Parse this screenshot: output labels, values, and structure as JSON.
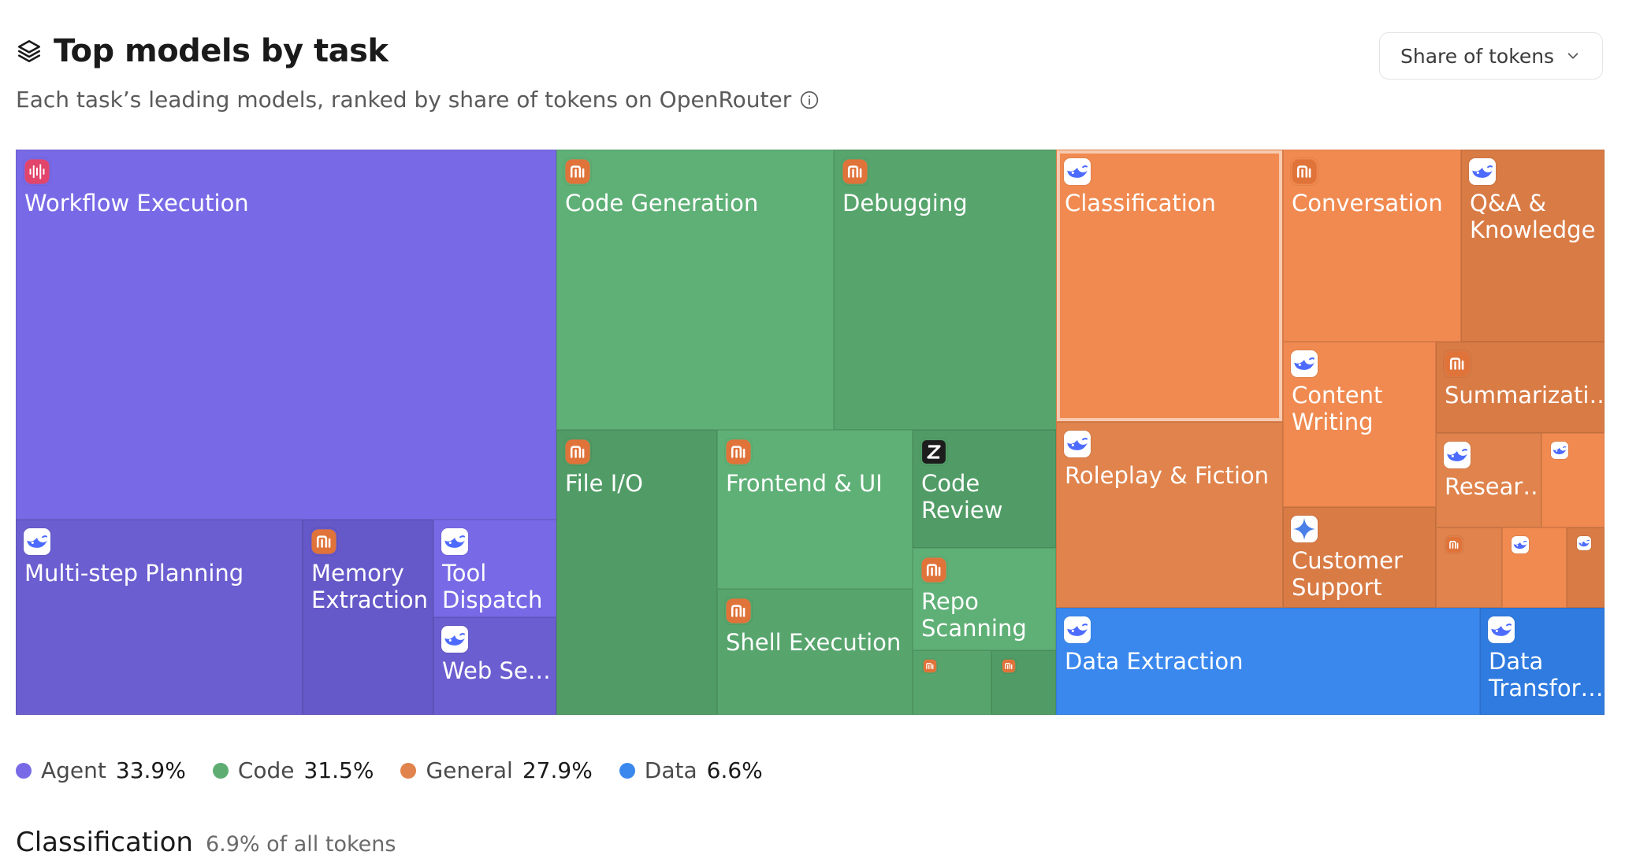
{
  "header": {
    "title": "Top models by task",
    "subtitle": "Each task’s leading models, ranked by share of tokens on OpenRouter",
    "metric_selected": "Share of tokens"
  },
  "colors": {
    "Agent": "#786ae6",
    "Code": "#5eae74",
    "General": "#e0834c",
    "Data": "#3a88ee"
  },
  "chart_data": {
    "type": "treemap",
    "title": "Top models by task",
    "groups": [
      {
        "name": "Agent",
        "share_label": "33.9%",
        "share": 33.9
      },
      {
        "name": "Code",
        "share_label": "31.5%",
        "share": 31.5
      },
      {
        "name": "General",
        "share_label": "27.9%",
        "share": 27.9
      },
      {
        "name": "Data",
        "share_label": "6.6%",
        "share": 6.6
      }
    ],
    "tasks": [
      {
        "label": "Workflow Execution",
        "group": "Agent",
        "icon": "waveform-logo-icon"
      },
      {
        "label": "Multi-step Planning",
        "group": "Agent",
        "icon": "whale-logo-icon"
      },
      {
        "label": "Memory Extraction",
        "group": "Agent",
        "icon": "mi-logo-icon"
      },
      {
        "label": "Tool Dispatch",
        "group": "Agent",
        "icon": "whale-logo-icon"
      },
      {
        "label": "Web Se…",
        "group": "Agent",
        "icon": "whale-logo-icon"
      },
      {
        "label": "Code Generation",
        "group": "Code",
        "icon": "mi-logo-icon"
      },
      {
        "label": "Debugging",
        "group": "Code",
        "icon": "mi-logo-icon"
      },
      {
        "label": "File I/O",
        "group": "Code",
        "icon": "mi-logo-icon"
      },
      {
        "label": "Frontend & UI",
        "group": "Code",
        "icon": "mi-logo-icon"
      },
      {
        "label": "Shell Execution",
        "group": "Code",
        "icon": "mi-logo-icon"
      },
      {
        "label": "Code Review",
        "group": "Code",
        "icon": "z-logo-icon"
      },
      {
        "label": "Repo Scanning",
        "group": "Code",
        "icon": "mi-logo-icon"
      },
      {
        "label": "",
        "group": "Code",
        "icon": "mi-logo-icon"
      },
      {
        "label": "",
        "group": "Code",
        "icon": "mi-logo-icon"
      },
      {
        "label": "Classification",
        "group": "General",
        "icon": "whale-logo-icon",
        "selected": true
      },
      {
        "label": "Conversation",
        "group": "General",
        "icon": "mi-logo-icon"
      },
      {
        "label": "Q&A & Knowledge",
        "group": "General",
        "icon": "whale-logo-icon"
      },
      {
        "label": "Roleplay & Fiction",
        "group": "General",
        "icon": "whale-logo-icon"
      },
      {
        "label": "Content Writing",
        "group": "General",
        "icon": "whale-logo-icon"
      },
      {
        "label": "Summarizati…",
        "group": "General",
        "icon": "mi-logo-icon"
      },
      {
        "label": "Resear…",
        "group": "General",
        "icon": "whale-logo-icon"
      },
      {
        "label": "",
        "group": "General",
        "icon": "whale-logo-icon"
      },
      {
        "label": "Customer Support",
        "group": "General",
        "icon": "sparkle-logo-icon"
      },
      {
        "label": "",
        "group": "General",
        "icon": "mi-logo-icon"
      },
      {
        "label": "",
        "group": "General",
        "icon": "whale-logo-icon"
      },
      {
        "label": "",
        "group": "General",
        "icon": "whale-logo-icon"
      },
      {
        "label": "",
        "group": "General",
        "icon": ""
      },
      {
        "label": "Data Extraction",
        "group": "Data",
        "icon": "whale-logo-icon"
      },
      {
        "label": "Data Transfor…",
        "group": "Data",
        "icon": "whale-logo-icon"
      }
    ]
  },
  "detail": {
    "title": "Classification",
    "subtitle": "6.9% of all tokens"
  }
}
